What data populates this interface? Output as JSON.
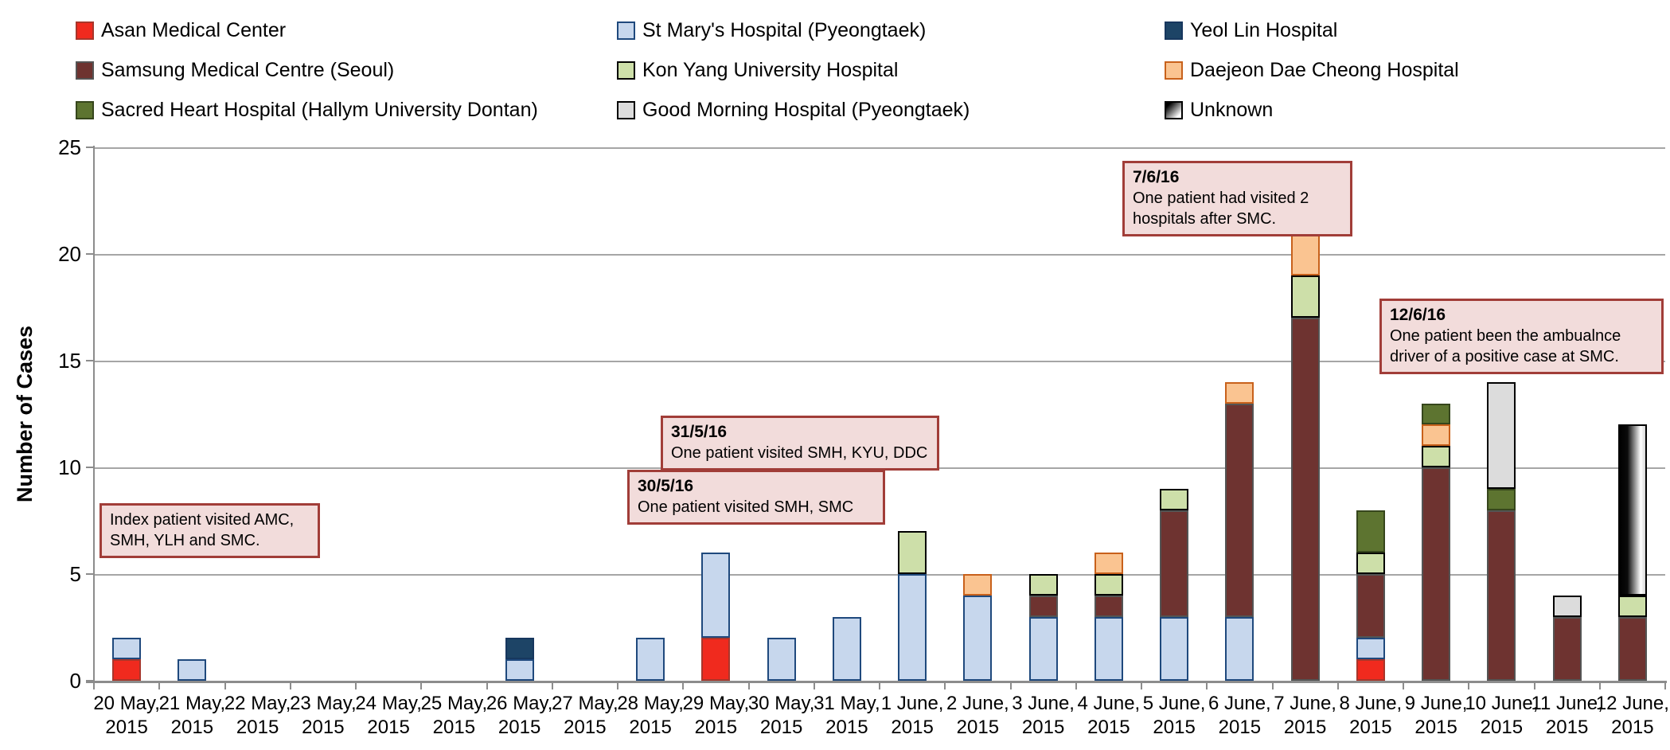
{
  "colors": {
    "grid": "#A6A6A6",
    "axis": "#8C8C8C",
    "annotation_fill": "#F2DCDB",
    "annotation_border": "#A13D38",
    "text": "#000000"
  },
  "legend": {
    "order": [
      0,
      3,
      6,
      1,
      4,
      7,
      2,
      5,
      8
    ]
  },
  "annotations": [
    {
      "title": "",
      "body": "Index patient visited AMC,\nSMH, YLH and SMC."
    },
    {
      "title": "30/5/16",
      "body": "One patient visited SMH, SMC"
    },
    {
      "title": "31/5/16",
      "body": "One patient visited SMH, KYU, DDC"
    },
    {
      "title": "7/6/16",
      "body": "One patient had visited 2\nhospitals after SMC."
    },
    {
      "title": "12/6/16",
      "body": "One patient been the ambualnce\ndriver of a positive case at SMC."
    }
  ],
  "chart_data": {
    "type": "bar",
    "stacked": true,
    "title": "",
    "xlabel": "",
    "ylabel": "Number of Cases",
    "ylim": [
      0,
      25
    ],
    "ytick_step": 5,
    "grid": true,
    "legend_position": "top",
    "categories": [
      "20 May,\n2015",
      "21 May,\n2015",
      "22 May,\n2015",
      "23 May,\n2015",
      "24 May,\n2015",
      "25 May,\n2015",
      "26 May,\n2015",
      "27 May,\n2015",
      "28 May,\n2015",
      "29 May,\n2015",
      "30 May,\n2015",
      "31 May,\n2015",
      "1 June,\n2015",
      "2 June,\n2015",
      "3 June,\n2015",
      "4 June,\n2015",
      "5 June,\n2015",
      "6 June,\n2015",
      "7 June,\n2015",
      "8 June,\n2015",
      "9 June,\n2015",
      "10 June,\n2015",
      "11 June,\n2015",
      "12 June,\n2015"
    ],
    "series": [
      {
        "name": "Asan Medical Center",
        "fill": "#F02A1E",
        "border": "#A8362B",
        "values": [
          1,
          0,
          0,
          0,
          0,
          0,
          0,
          0,
          0,
          2,
          0,
          0,
          0,
          0,
          0,
          0,
          0,
          0,
          0,
          1,
          0,
          0,
          0,
          0
        ]
      },
      {
        "name": "St Mary's Hospital (Pyeongtaek)",
        "fill": "#C7D7ED",
        "border": "#1F497D",
        "values": [
          1,
          1,
          0,
          0,
          0,
          0,
          1,
          0,
          2,
          4,
          2,
          3,
          5,
          4,
          3,
          3,
          3,
          3,
          0,
          1,
          0,
          0,
          0,
          0
        ]
      },
      {
        "name": "Yeol Lin Hospital",
        "fill": "#1D4466",
        "border": "#17375E",
        "values": [
          0,
          0,
          0,
          0,
          0,
          0,
          1,
          0,
          0,
          0,
          0,
          0,
          0,
          0,
          0,
          0,
          0,
          0,
          0,
          0,
          0,
          0,
          0,
          0
        ]
      },
      {
        "name": "Samsung Medical Centre (Seoul)",
        "fill": "#6E3330",
        "border": "#545454",
        "values": [
          0,
          0,
          0,
          0,
          0,
          0,
          0,
          0,
          0,
          0,
          0,
          0,
          0,
          0,
          1,
          1,
          5,
          10,
          17,
          3,
          10,
          8,
          3,
          3
        ]
      },
      {
        "name": "Kon Yang University Hospital",
        "fill": "#CDDFA9",
        "border": "#000000",
        "values": [
          0,
          0,
          0,
          0,
          0,
          0,
          0,
          0,
          0,
          0,
          0,
          0,
          2,
          0,
          1,
          1,
          1,
          0,
          2,
          1,
          1,
          0,
          0,
          1
        ]
      },
      {
        "name": "Daejeon Dae Cheong Hospital",
        "fill": "#FAC491",
        "border": "#C8611B",
        "values": [
          0,
          0,
          0,
          0,
          0,
          0,
          0,
          0,
          0,
          0,
          0,
          0,
          0,
          1,
          0,
          1,
          0,
          1,
          2,
          0,
          1,
          0,
          0,
          0
        ]
      },
      {
        "name": "Sacred Heart Hospital (Hallym University Dontan)",
        "fill": "#5D7430",
        "border": "#36461C",
        "values": [
          0,
          0,
          0,
          0,
          0,
          0,
          0,
          0,
          0,
          0,
          0,
          0,
          0,
          0,
          0,
          0,
          0,
          0,
          0,
          2,
          1,
          1,
          0,
          0
        ]
      },
      {
        "name": "Good Morning Hospital (Pyeongtaek)",
        "fill": "#DCDCDC",
        "border": "#000000",
        "values": [
          0,
          0,
          0,
          0,
          0,
          0,
          0,
          0,
          0,
          0,
          0,
          0,
          0,
          0,
          0,
          0,
          0,
          0,
          0,
          0,
          0,
          5,
          1,
          0
        ]
      },
      {
        "name": "Unknown",
        "fill": "#000000",
        "border": "#000000",
        "gradient": true,
        "values": [
          0,
          0,
          0,
          0,
          0,
          0,
          0,
          0,
          0,
          0,
          0,
          0,
          0,
          0,
          0,
          0,
          0,
          0,
          0,
          0,
          0,
          0,
          0,
          8
        ]
      }
    ]
  }
}
